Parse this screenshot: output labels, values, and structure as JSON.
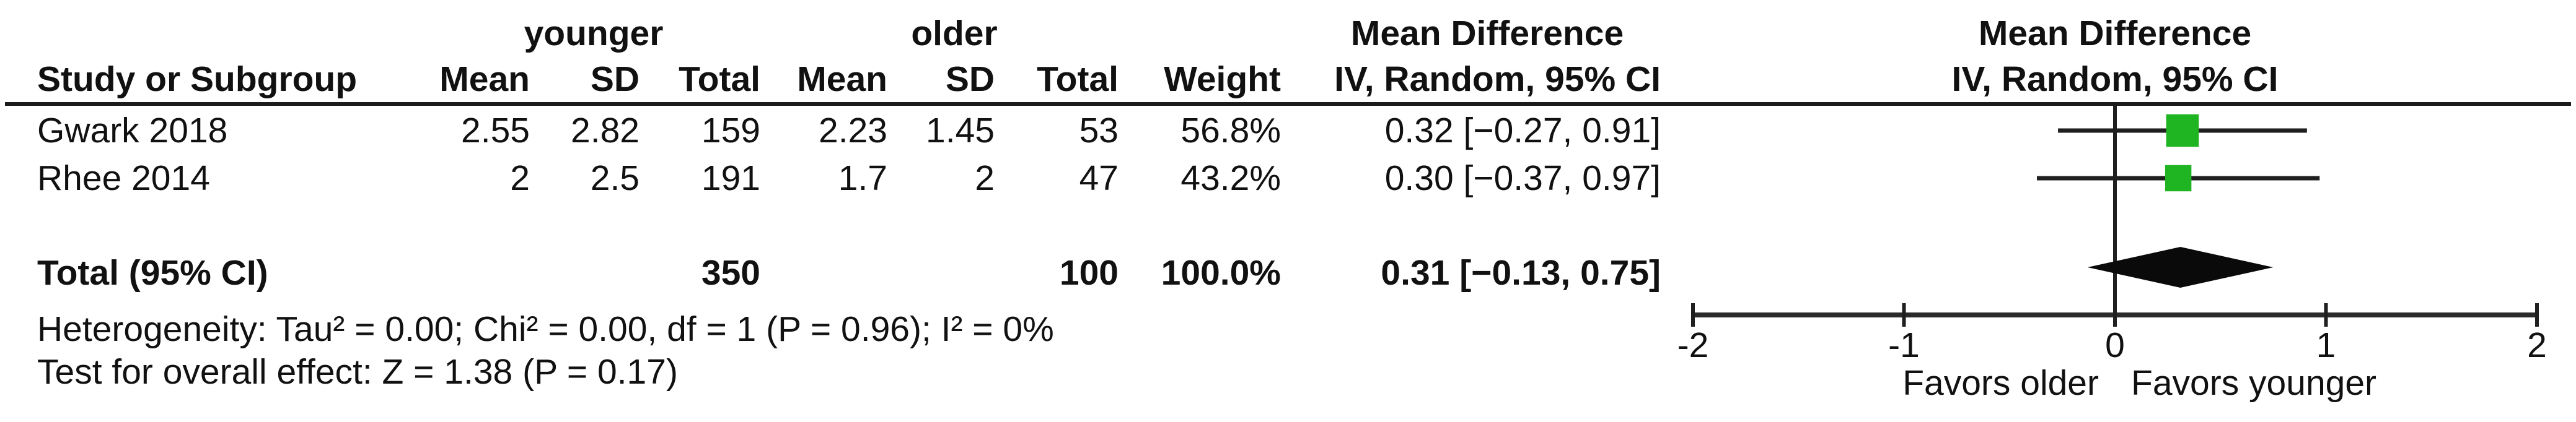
{
  "figure": {
    "left_header": "Study or Subgroup",
    "group1": "younger",
    "group2": "older",
    "col_mean": "Mean",
    "col_sd": "SD",
    "col_total": "Total",
    "col_weight": "Weight",
    "effect_header": "Mean Difference",
    "effect_subheader": "IV, Random, 95% CI",
    "plot_title_line1": "Mean Difference",
    "plot_title_line2": "IV, Random, 95% CI"
  },
  "rows": [
    {
      "name": "Gwark 2018",
      "mean1": "2.55",
      "sd1": "2.82",
      "total1": "159",
      "mean2": "2.23",
      "sd2": "1.45",
      "total2": "53",
      "weight": "56.8%",
      "ci": "0.32 [−0.27, 0.91]"
    },
    {
      "name": "Rhee 2014",
      "mean1": "2",
      "sd1": "2.5",
      "total1": "191",
      "mean2": "1.7",
      "sd2": "2",
      "total2": "47",
      "weight": "43.2%",
      "ci": "0.30 [−0.37, 0.97]"
    }
  ],
  "total_row": {
    "label": "Total (95% CI)",
    "total1": "350",
    "total2": "100",
    "weight": "100.0%",
    "ci": "0.31 [−0.13, 0.75]"
  },
  "footer": {
    "heterogeneity": "Heterogeneity: Tau² = 0.00; Chi² = 0.00, df = 1 (P = 0.96); I² = 0%",
    "overall_effect": "Test for overall effect: Z = 1.38 (P = 0.17)"
  },
  "chart_data": {
    "type": "forest",
    "effect_measure": "Mean Difference",
    "model": "IV, Random, 95% CI",
    "xlim": [
      -2,
      2
    ],
    "x_ticks": [
      -2,
      -1,
      0,
      1,
      2
    ],
    "x_tick_labels": [
      "-2",
      "-1",
      "0",
      "1",
      "2"
    ],
    "favors_left": "Favors older",
    "favors_right": "Favors younger",
    "marker_color": "#1eb422",
    "line_color": "#1f1f1f",
    "studies": [
      {
        "name": "Gwark 2018",
        "younger": {
          "mean": 2.55,
          "sd": 2.82,
          "total": 159
        },
        "older": {
          "mean": 2.23,
          "sd": 1.45,
          "total": 53
        },
        "weight_pct": 56.8,
        "md": 0.32,
        "ci_low": -0.27,
        "ci_high": 0.91
      },
      {
        "name": "Rhee 2014",
        "younger": {
          "mean": 2,
          "sd": 2.5,
          "total": 191
        },
        "older": {
          "mean": 1.7,
          "sd": 2,
          "total": 47
        },
        "weight_pct": 43.2,
        "md": 0.3,
        "ci_low": -0.37,
        "ci_high": 0.97
      }
    ],
    "total": {
      "label": "Total (95% CI)",
      "younger_total": 350,
      "older_total": 100,
      "weight_pct": 100.0,
      "md": 0.31,
      "ci_low": -0.13,
      "ci_high": 0.75
    },
    "heterogeneity": {
      "tau2": 0.0,
      "chi2": 0.0,
      "df": 1,
      "p": 0.96,
      "i2_pct": 0
    },
    "overall_effect": {
      "z": 1.38,
      "p": 0.17
    }
  }
}
